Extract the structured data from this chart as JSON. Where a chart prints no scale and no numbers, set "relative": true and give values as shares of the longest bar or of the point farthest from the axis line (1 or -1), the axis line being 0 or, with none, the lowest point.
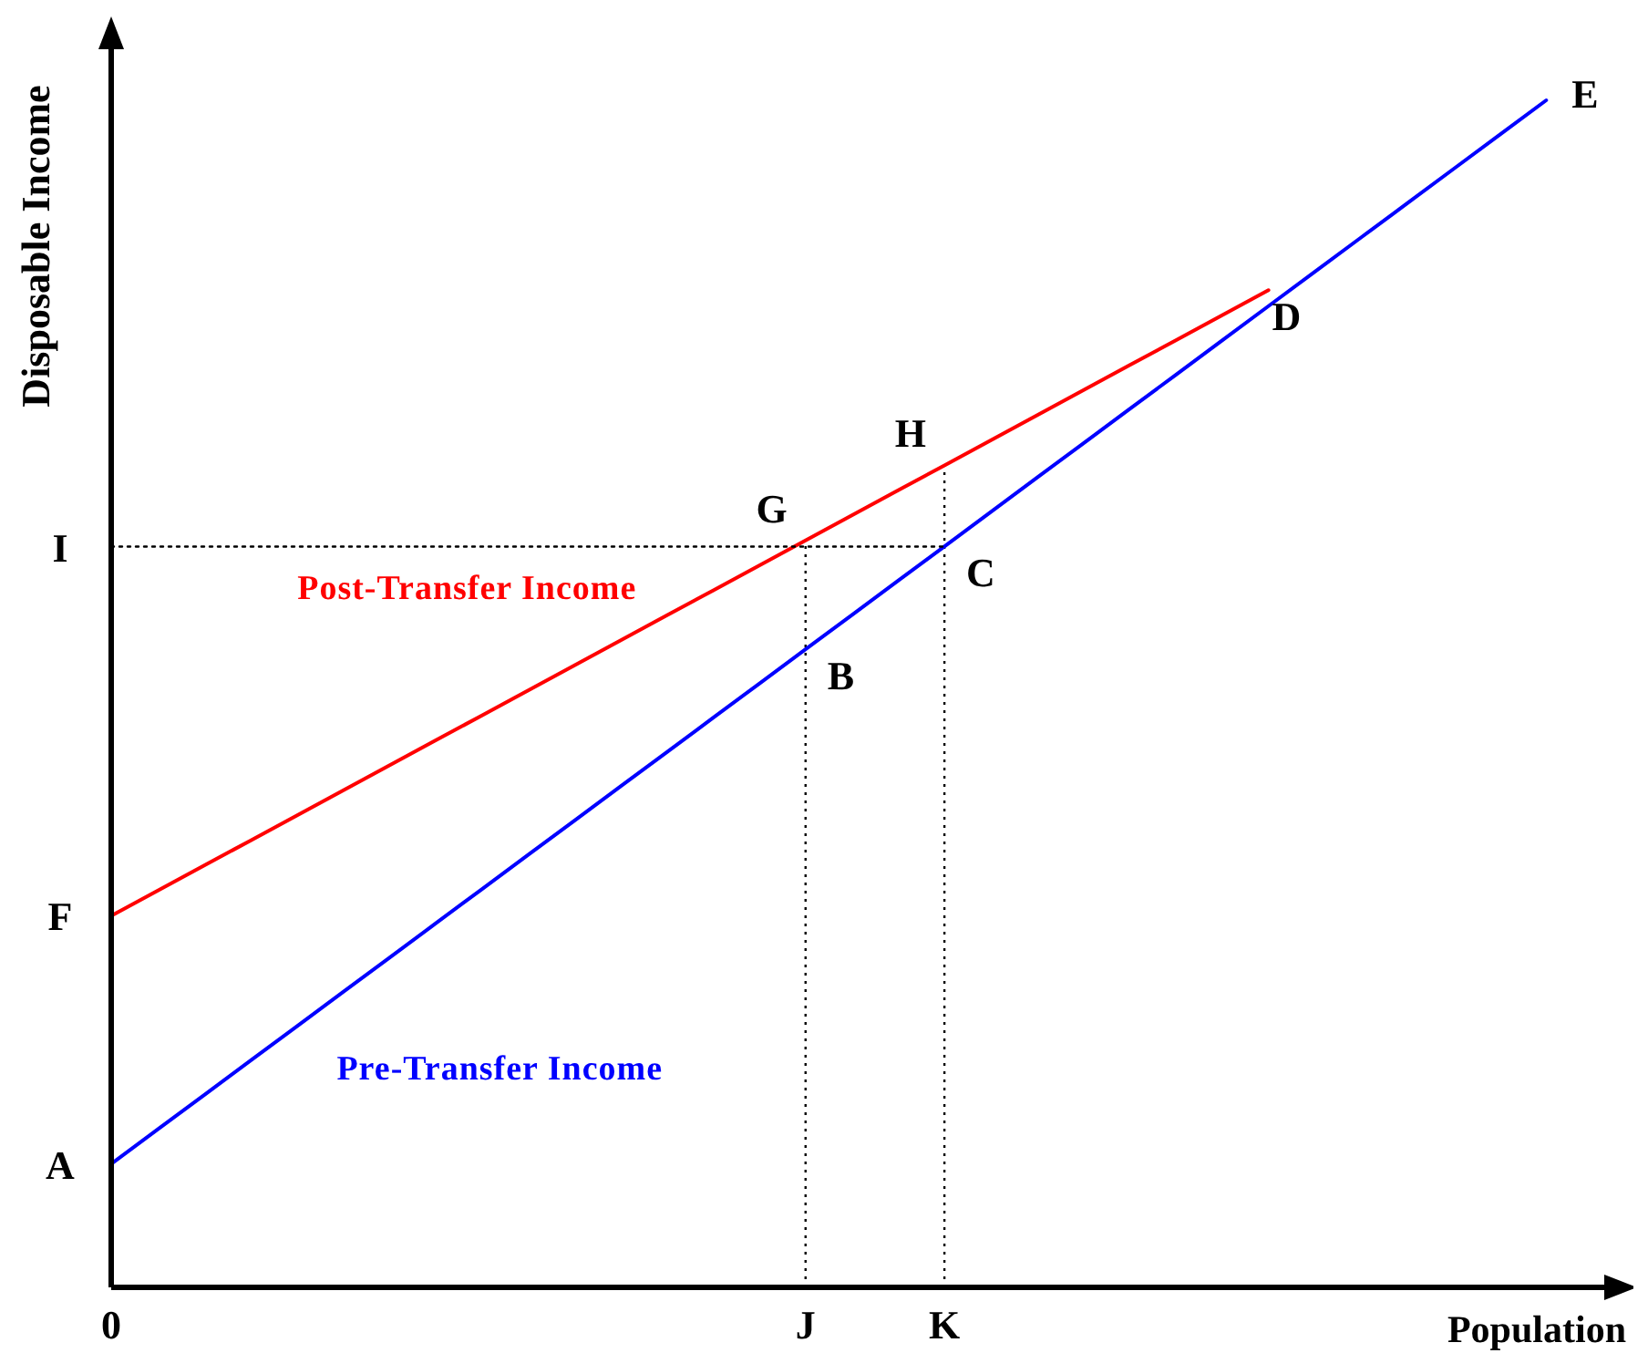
{
  "chart_data": {
    "type": "line",
    "relative": true,
    "xlabel": "Population",
    "ylabel": "Disposable Income",
    "marker": "none",
    "categories": [
      "0",
      null,
      null,
      null,
      null,
      null,
      null,
      null,
      null,
      null,
      null,
      null,
      null,
      null,
      null,
      "J",
      null,
      null,
      "K",
      null,
      null,
      null,
      null,
      null,
      null,
      null,
      null,
      null,
      null,
      null,
      null,
      null
    ],
    "series": [
      {
        "name": "Pre-Transfer Income",
        "color": "#0000ff",
        "values": [
          0.104,
          0.1329,
          0.1618,
          0.1907,
          0.2196,
          0.2485,
          0.2774,
          0.3063,
          0.3352,
          0.3641,
          0.393,
          0.4219,
          0.4508,
          0.4797,
          0.5086,
          0.5375,
          0.5664,
          0.5953,
          0.6242,
          0.6531,
          0.6821,
          0.711,
          0.7399,
          0.7688,
          0.7977,
          0.8266,
          0.8555,
          0.8844,
          0.9133,
          0.9422,
          0.9711,
          1
        ]
      },
      {
        "name": "Post-Transfer Income",
        "color": "#ff0000",
        "values": [
          0.313,
          0.3341,
          0.3552,
          0.3762,
          0.3973,
          0.4184,
          0.4395,
          0.4606,
          0.4816,
          0.5027,
          0.5238,
          0.5449,
          0.566,
          0.587,
          0.6081,
          0.6292,
          0.6503,
          0.6714,
          0.6924,
          0.7135,
          0.7346,
          0.7557,
          0.7768,
          0.7978,
          0.8189,
          0.84,
          null,
          null,
          null,
          null,
          null,
          null
        ]
      },
      {
        "color": "#000000",
        "line_style": "dotted",
        "values": [
          0.624,
          0.624,
          0.624,
          0.624,
          0.624,
          0.624,
          0.624,
          0.624,
          0.624,
          0.624,
          0.624,
          0.624,
          0.624,
          0.624,
          0.624,
          0.624,
          0.624,
          0.624,
          0.624,
          null,
          null,
          null,
          null,
          null,
          null,
          null,
          null,
          null,
          null,
          null,
          null,
          null
        ]
      }
    ],
    "ref_lines": [
      {
        "axis": "x",
        "value": "J",
        "color": "#000000",
        "line_style": "dotted"
      },
      {
        "axis": "x",
        "value": "K",
        "color": "#000000",
        "line_style": "dotted"
      }
    ],
    "annotations": [
      {
        "text": "A",
        "x": "0",
        "y": 0.104
      },
      {
        "text": "F",
        "x": "0",
        "y": 0.313
      },
      {
        "text": "I",
        "x": "0",
        "y": 0.624
      },
      {
        "text": "B",
        "x": "J",
        "y": 0.5375
      },
      {
        "text": "C",
        "x": "K",
        "y": 0.6242
      },
      {
        "text": "G",
        "x": "J",
        "y": 0.6292
      },
      {
        "text": "H",
        "x": "K",
        "y": 0.6924
      },
      "D",
      "E"
    ]
  }
}
